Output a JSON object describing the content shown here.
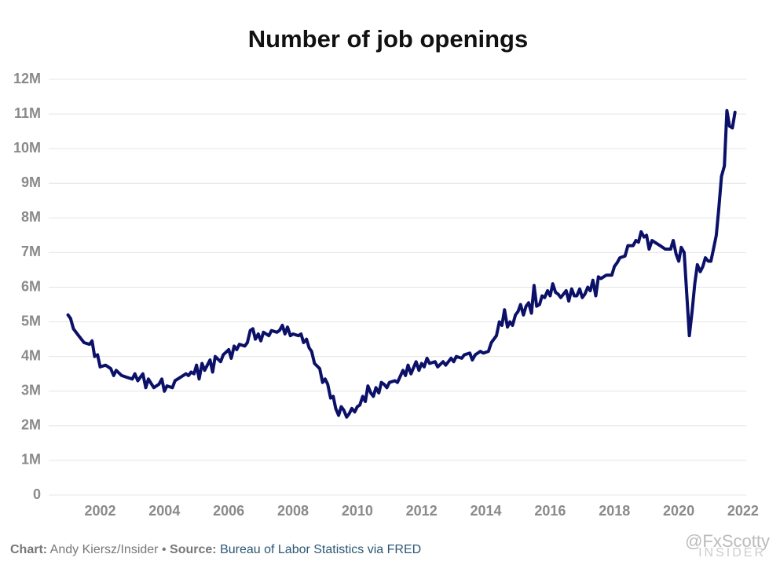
{
  "chart_data": {
    "type": "line",
    "title": "Number of job openings",
    "x": [
      2001.0,
      2001.08,
      2001.17,
      2001.33,
      2001.5,
      2001.67,
      2001.75,
      2001.83,
      2001.92,
      2002.0,
      2002.17,
      2002.33,
      2002.42,
      2002.5,
      2002.67,
      2002.83,
      2003.0,
      2003.08,
      2003.17,
      2003.33,
      2003.42,
      2003.5,
      2003.67,
      2003.83,
      2003.92,
      2004.0,
      2004.08,
      2004.25,
      2004.33,
      2004.5,
      2004.67,
      2004.75,
      2004.83,
      2004.92,
      2005.0,
      2005.08,
      2005.17,
      2005.25,
      2005.42,
      2005.5,
      2005.58,
      2005.75,
      2005.83,
      2006.0,
      2006.08,
      2006.17,
      2006.25,
      2006.33,
      2006.5,
      2006.58,
      2006.67,
      2006.75,
      2006.83,
      2006.92,
      2007.0,
      2007.08,
      2007.25,
      2007.33,
      2007.5,
      2007.58,
      2007.67,
      2007.75,
      2007.83,
      2007.92,
      2008.0,
      2008.17,
      2008.25,
      2008.33,
      2008.42,
      2008.5,
      2008.58,
      2008.67,
      2008.83,
      2008.92,
      2009.0,
      2009.08,
      2009.17,
      2009.25,
      2009.33,
      2009.42,
      2009.5,
      2009.58,
      2009.67,
      2009.75,
      2009.83,
      2009.92,
      2010.0,
      2010.08,
      2010.17,
      2010.25,
      2010.33,
      2010.42,
      2010.5,
      2010.58,
      2010.67,
      2010.75,
      2010.83,
      2010.92,
      2011.0,
      2011.17,
      2011.25,
      2011.42,
      2011.5,
      2011.58,
      2011.67,
      2011.83,
      2011.92,
      2012.0,
      2012.08,
      2012.17,
      2012.25,
      2012.42,
      2012.5,
      2012.67,
      2012.75,
      2012.92,
      2013.0,
      2013.08,
      2013.25,
      2013.33,
      2013.5,
      2013.58,
      2013.67,
      2013.83,
      2013.92,
      2014.08,
      2014.17,
      2014.33,
      2014.42,
      2014.5,
      2014.58,
      2014.67,
      2014.75,
      2014.83,
      2014.92,
      2015.0,
      2015.08,
      2015.17,
      2015.25,
      2015.33,
      2015.42,
      2015.5,
      2015.58,
      2015.67,
      2015.75,
      2015.83,
      2015.92,
      2016.0,
      2016.08,
      2016.17,
      2016.25,
      2016.33,
      2016.5,
      2016.58,
      2016.67,
      2016.75,
      2016.83,
      2016.92,
      2017.0,
      2017.08,
      2017.17,
      2017.25,
      2017.33,
      2017.42,
      2017.5,
      2017.58,
      2017.75,
      2017.92,
      2018.0,
      2018.08,
      2018.17,
      2018.33,
      2018.42,
      2018.58,
      2018.67,
      2018.75,
      2018.83,
      2018.92,
      2019.0,
      2019.08,
      2019.17,
      2019.25,
      2019.42,
      2019.58,
      2019.75,
      2019.83,
      2019.92,
      2020.0,
      2020.08,
      2020.17,
      2020.33,
      2020.42,
      2020.5,
      2020.58,
      2020.67,
      2020.75,
      2020.83,
      2020.92,
      2021.0,
      2021.08,
      2021.17,
      2021.25,
      2021.33,
      2021.42,
      2021.5,
      2021.58,
      2021.67,
      2021.75
    ],
    "series": [
      {
        "color": "#0b1068",
        "values": [
          5.2,
          5.1,
          4.8,
          4.6,
          4.4,
          4.35,
          4.45,
          4.0,
          4.05,
          3.7,
          3.75,
          3.65,
          3.45,
          3.6,
          3.45,
          3.4,
          3.35,
          3.5,
          3.3,
          3.5,
          3.1,
          3.35,
          3.1,
          3.2,
          3.35,
          3.0,
          3.15,
          3.1,
          3.3,
          3.4,
          3.5,
          3.45,
          3.55,
          3.5,
          3.75,
          3.35,
          3.8,
          3.6,
          3.9,
          3.55,
          4.0,
          3.85,
          4.05,
          4.2,
          3.95,
          4.3,
          4.2,
          4.35,
          4.3,
          4.4,
          4.75,
          4.8,
          4.5,
          4.65,
          4.45,
          4.7,
          4.6,
          4.75,
          4.7,
          4.75,
          4.9,
          4.65,
          4.85,
          4.6,
          4.65,
          4.6,
          4.65,
          4.4,
          4.5,
          4.25,
          4.15,
          3.8,
          3.65,
          3.25,
          3.35,
          3.2,
          2.8,
          2.85,
          2.5,
          2.3,
          2.55,
          2.45,
          2.25,
          2.35,
          2.5,
          2.4,
          2.55,
          2.6,
          2.85,
          2.7,
          3.15,
          2.95,
          2.85,
          3.1,
          2.95,
          3.25,
          3.2,
          3.1,
          3.25,
          3.3,
          3.25,
          3.6,
          3.45,
          3.75,
          3.5,
          3.85,
          3.6,
          3.8,
          3.7,
          3.95,
          3.8,
          3.85,
          3.7,
          3.85,
          3.75,
          3.95,
          3.85,
          4.0,
          3.95,
          4.05,
          4.1,
          3.9,
          4.05,
          4.15,
          4.1,
          4.15,
          4.4,
          4.6,
          5.0,
          4.9,
          5.35,
          4.85,
          5.0,
          4.9,
          5.2,
          5.3,
          5.5,
          5.2,
          5.45,
          5.55,
          5.25,
          6.05,
          5.45,
          5.5,
          5.75,
          5.7,
          5.9,
          5.75,
          6.1,
          5.85,
          5.8,
          5.7,
          5.9,
          5.6,
          5.95,
          5.75,
          5.75,
          5.95,
          5.7,
          5.8,
          6.0,
          5.9,
          6.2,
          5.75,
          6.3,
          6.25,
          6.35,
          6.35,
          6.6,
          6.7,
          6.85,
          6.9,
          7.2,
          7.2,
          7.35,
          7.3,
          7.6,
          7.45,
          7.5,
          7.1,
          7.35,
          7.3,
          7.2,
          7.1,
          7.1,
          7.35,
          6.95,
          6.75,
          7.15,
          7.0,
          4.6,
          5.35,
          6.1,
          6.65,
          6.45,
          6.6,
          6.85,
          6.75,
          6.75,
          7.1,
          7.5,
          8.3,
          9.2,
          9.5,
          11.1,
          10.65,
          10.6,
          11.05
        ]
      }
    ],
    "xlim": [
      2000.4,
      2022.1
    ],
    "xticks": [
      2002,
      2004,
      2006,
      2008,
      2010,
      2012,
      2014,
      2016,
      2018,
      2020,
      2022
    ],
    "ylim": [
      0,
      12
    ],
    "yticks": [
      0,
      {
        "value": 1,
        "label": "1M"
      },
      {
        "value": 2,
        "label": "2M"
      },
      {
        "value": 3,
        "label": "3M"
      },
      {
        "value": 4,
        "label": "4M"
      },
      {
        "value": 5,
        "label": "5M"
      },
      {
        "value": 6,
        "label": "6M"
      },
      {
        "value": 7,
        "label": "7M"
      },
      {
        "value": 8,
        "label": "8M"
      },
      {
        "value": 9,
        "label": "9M"
      },
      {
        "value": 10,
        "label": "10M"
      },
      {
        "value": 11,
        "label": "11M"
      },
      {
        "value": 12,
        "label": "12M"
      }
    ],
    "grid": true
  },
  "footer": {
    "chart_label": "Chart:",
    "chart_credit": "Andy Kiersz/Insider",
    "separator": "•",
    "source_label": "Source:",
    "source": "Bureau of Labor Statistics via FRED",
    "watermark": "@FxScotty",
    "logo": "INSIDER"
  }
}
